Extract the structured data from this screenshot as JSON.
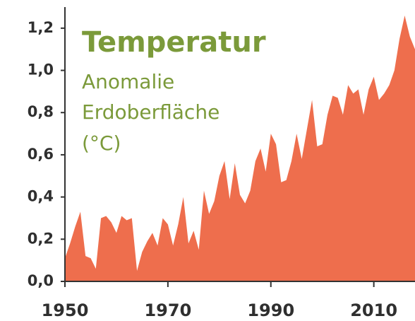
{
  "chart_data": {
    "type": "area",
    "title": "Temperatur",
    "subtitle": [
      "Anomalie",
      "Erdoberfläche",
      "(°C)"
    ],
    "color": "#ee6e4d",
    "x": [
      1950,
      1951,
      1952,
      1953,
      1954,
      1955,
      1956,
      1957,
      1958,
      1959,
      1960,
      1961,
      1962,
      1963,
      1964,
      1965,
      1966,
      1967,
      1968,
      1969,
      1970,
      1971,
      1972,
      1973,
      1974,
      1975,
      1976,
      1977,
      1978,
      1979,
      1980,
      1981,
      1982,
      1983,
      1984,
      1985,
      1986,
      1987,
      1988,
      1989,
      1990,
      1991,
      1992,
      1993,
      1994,
      1995,
      1996,
      1997,
      1998,
      1999,
      2000,
      2001,
      2002,
      2003,
      2004,
      2005,
      2006,
      2007,
      2008,
      2009,
      2010,
      2011,
      2012,
      2013,
      2014,
      2015,
      2016,
      2017,
      2018
    ],
    "values": [
      0.11,
      0.18,
      0.26,
      0.33,
      0.12,
      0.11,
      0.06,
      0.3,
      0.31,
      0.28,
      0.23,
      0.31,
      0.29,
      0.3,
      0.05,
      0.14,
      0.19,
      0.23,
      0.17,
      0.3,
      0.27,
      0.17,
      0.27,
      0.4,
      0.18,
      0.24,
      0.15,
      0.43,
      0.32,
      0.38,
      0.5,
      0.57,
      0.39,
      0.56,
      0.41,
      0.37,
      0.43,
      0.57,
      0.63,
      0.52,
      0.7,
      0.65,
      0.47,
      0.48,
      0.57,
      0.7,
      0.58,
      0.72,
      0.86,
      0.64,
      0.65,
      0.79,
      0.88,
      0.87,
      0.79,
      0.93,
      0.89,
      0.91,
      0.79,
      0.91,
      0.97,
      0.86,
      0.89,
      0.93,
      1.0,
      1.15,
      1.26,
      1.16,
      1.1
    ],
    "xlim": [
      1950,
      2018
    ],
    "xticks": [
      1950,
      1970,
      1990,
      2010
    ],
    "ylim": [
      0,
      1.3
    ],
    "yticks": [
      {
        "value": 0,
        "label": "0,0"
      },
      {
        "value": 0.2,
        "label": "0,2"
      },
      {
        "value": 0.4,
        "label": "0,4"
      },
      {
        "value": 0.6,
        "label": "0,6"
      },
      {
        "value": 0.8,
        "label": "0,8"
      },
      {
        "value": 1.0,
        "label": "1,0"
      },
      {
        "value": 1.2,
        "label": "1,2"
      }
    ]
  }
}
